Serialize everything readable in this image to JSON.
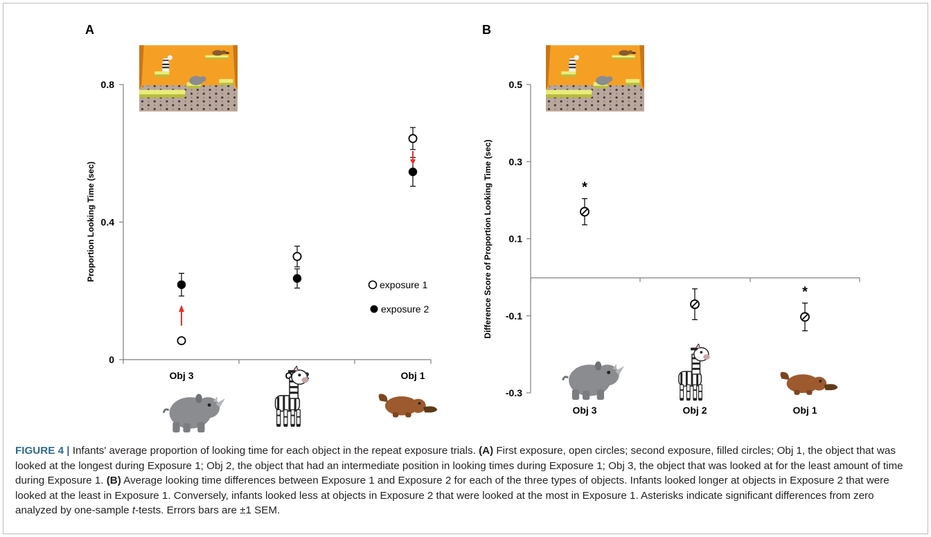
{
  "figure": {
    "panels": [
      "A",
      "B"
    ]
  },
  "chart_data": [
    {
      "panel": "A",
      "type": "scatter",
      "ylabel": "Proportion Looking Time (sec)",
      "xlabel": "",
      "ylim": [
        0,
        0.8
      ],
      "yticks": [
        "0",
        "0.4",
        "0.8"
      ],
      "categories": [
        "Obj 3",
        "Obj 2",
        "Obj 1"
      ],
      "series": [
        {
          "name": "exposure 1",
          "marker": "open-circle",
          "values": [
            0.055,
            0.3,
            0.643
          ],
          "errors": [
            0.0,
            0.03,
            0.032
          ]
        },
        {
          "name": "exposure 2",
          "marker": "filled-circle",
          "values": [
            0.218,
            0.236,
            0.546
          ],
          "errors": [
            0.033,
            0.028,
            0.042
          ]
        }
      ],
      "arrows": [
        {
          "category": "Obj 3",
          "direction": "up",
          "color": "#e8302a"
        },
        {
          "category": "Obj 1",
          "direction": "down",
          "color": "#e8302a"
        }
      ],
      "legend_position": "center-right",
      "grid": false
    },
    {
      "panel": "B",
      "type": "scatter",
      "ylabel": "Difference Score of Proportion Looking Time (sec)",
      "xlabel": "",
      "ylim": [
        -0.3,
        0.5
      ],
      "yticks": [
        "-0.3",
        "-0.1",
        "0.1",
        "0.3",
        "0.5"
      ],
      "categories": [
        "Obj 3",
        "Obj 2",
        "Obj 1"
      ],
      "series": [
        {
          "marker": "slashed-circle",
          "values": [
            0.17,
            -0.07,
            -0.103
          ],
          "errors": [
            0.034,
            0.04,
            0.036
          ],
          "significant": [
            true,
            false,
            true
          ]
        }
      ],
      "significance_mark": "*",
      "grid": false
    }
  ],
  "caption": {
    "label": "FIGURE 4",
    "sep": "|",
    "s1": "Infants' average proportion of looking time for each object in the repeat exposure trials.",
    "a_label": "(A)",
    "s2": "First exposure, open circles; second exposure, filled circles; Obj 1, the object that was looked at the longest during Exposure 1; Obj 2, the object that had an intermediate position in looking times during Exposure 1; Obj 3, the object that was looked at for the least amount of time during Exposure 1.",
    "b_label": "(B)",
    "s3": "Average looking time differences between Exposure 1 and Exposure 2 for each of the three types of objects. Infants looked longer at objects in Exposure 2 that were looked at the least in Exposure 1. Conversely, infants looked less at objects in Exposure 2 that were looked at the most in Exposure 1. Asterisks indicate significant differences from zero analyzed by one-sample",
    "t": "t",
    "s4": "-tests. Errors bars are ±1 SEM."
  },
  "colors": {
    "arrow": "#e8302a",
    "stage_wall": "#f5a024",
    "platform": "#dfe46a",
    "caption_label": "#2d6b8f",
    "rhino": "#8a8c90",
    "platypus": "#9c5a2e"
  },
  "icons": [
    "rhino-icon",
    "zebra-icon",
    "platypus-icon",
    "stage-scene-image"
  ]
}
